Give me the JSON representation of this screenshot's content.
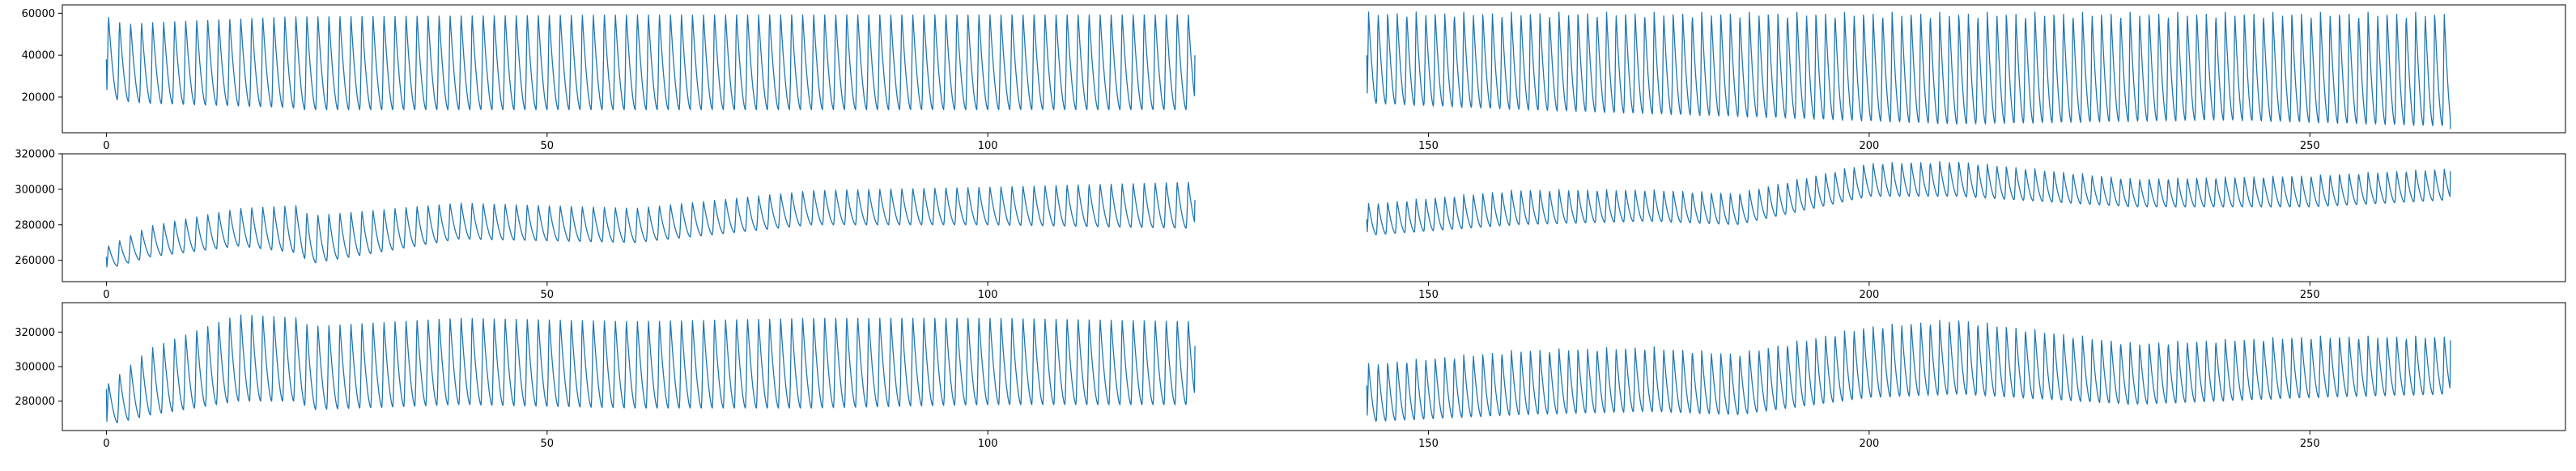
{
  "figure": {
    "background": "#ffffff",
    "line_color": "#1f77b4"
  },
  "chart_data": [
    {
      "type": "line",
      "title": "",
      "xlabel": "",
      "ylabel": "",
      "xlim": [
        -5,
        279
      ],
      "ylim": [
        3000,
        64000
      ],
      "xticks": [
        0,
        50,
        100,
        150,
        200,
        250
      ],
      "xtick_labels": [
        "0",
        "50",
        "100",
        "150",
        "200",
        "250"
      ],
      "yticks": [
        20000,
        40000,
        60000
      ],
      "ytick_labels": [
        "20000",
        "40000",
        "60000"
      ],
      "grid": false,
      "segments": [
        {
          "x_start": 0,
          "x_end": 123.5,
          "start_value": 38000,
          "end_value": 40000,
          "period": 1.25,
          "envelope": [
            [
              0,
              20000,
              60000
            ],
            [
              2,
              18000,
              56000
            ],
            [
              5,
              17000,
              57000
            ],
            [
              21,
              15000,
              60000
            ],
            [
              22,
              14000,
              60000
            ],
            [
              60,
              14000,
              61000
            ],
            [
              123,
              14000,
              61000
            ]
          ]
        },
        {
          "x_start": 143,
          "x_end": 266,
          "start_value": 40000,
          "end_value": 5000,
          "period": 1.08,
          "envelope": [
            [
              143,
              17000,
              61000
            ],
            [
              160,
              14000,
              61000
            ],
            [
              190,
              10000,
              61000
            ],
            [
              210,
              7000,
              61000
            ],
            [
              240,
              9000,
              61000
            ],
            [
              266,
              6000,
              61000
            ]
          ]
        }
      ]
    },
    {
      "type": "line",
      "title": "",
      "xlabel": "",
      "ylabel": "",
      "xlim": [
        -5,
        279
      ],
      "ylim": [
        248000,
        320000
      ],
      "xticks": [
        0,
        50,
        100,
        150,
        200,
        250
      ],
      "xtick_labels": [
        "0",
        "50",
        "100",
        "150",
        "200",
        "250"
      ],
      "yticks": [
        260000,
        280000,
        300000,
        320000
      ],
      "ytick_labels": [
        "260000",
        "280000",
        "300000",
        "320000"
      ],
      "grid": false,
      "segments": [
        {
          "x_start": 0,
          "x_end": 123.5,
          "start_value": 262000,
          "end_value": 294000,
          "period": 1.25,
          "envelope": [
            [
              0,
              255000,
              268000
            ],
            [
              5,
              262000,
              280000
            ],
            [
              15,
              268000,
              290000
            ],
            [
              22,
              264000,
              292000
            ],
            [
              23,
              258000,
              286000
            ],
            [
              40,
              272000,
              293000
            ],
            [
              60,
              270000,
              290000
            ],
            [
              80,
              280000,
              300000
            ],
            [
              100,
              280000,
              302000
            ],
            [
              123,
              278000,
              305000
            ]
          ]
        },
        {
          "x_start": 143,
          "x_end": 266,
          "start_value": 283000,
          "end_value": 310000,
          "period": 1.08,
          "envelope": [
            [
              143,
              274000,
              292000
            ],
            [
              160,
              280000,
              300000
            ],
            [
              175,
              282000,
              300000
            ],
            [
              185,
              280000,
              298000
            ],
            [
              200,
              296000,
              315000
            ],
            [
              210,
              296000,
              316000
            ],
            [
              230,
              290000,
              306000
            ],
            [
              250,
              290000,
              308000
            ],
            [
              266,
              294000,
              312000
            ]
          ]
        }
      ]
    },
    {
      "type": "line",
      "title": "",
      "xlabel": "",
      "ylabel": "",
      "xlim": [
        -5,
        279
      ],
      "ylim": [
        263000,
        337000
      ],
      "xticks": [
        0,
        50,
        100,
        150,
        200,
        250
      ],
      "xtick_labels": [
        "0",
        "50",
        "100",
        "150",
        "200",
        "250"
      ],
      "yticks": [
        280000,
        300000,
        320000
      ],
      "ytick_labels": [
        "280000",
        "300000",
        "320000"
      ],
      "grid": false,
      "segments": [
        {
          "x_start": 0,
          "x_end": 123.5,
          "start_value": 287000,
          "end_value": 312000,
          "period": 1.25,
          "envelope": [
            [
              0,
              266000,
              290000
            ],
            [
              5,
              272000,
              312000
            ],
            [
              15,
              280000,
              332000
            ],
            [
              22,
              280000,
              330000
            ],
            [
              23,
              275000,
              325000
            ],
            [
              40,
              278000,
              330000
            ],
            [
              60,
              276000,
              328000
            ],
            [
              80,
              276000,
              330000
            ],
            [
              100,
              278000,
              330000
            ],
            [
              123,
              278000,
              328000
            ]
          ]
        },
        {
          "x_start": 143,
          "x_end": 266,
          "start_value": 289000,
          "end_value": 315000,
          "period": 1.08,
          "envelope": [
            [
              143,
              268000,
              302000
            ],
            [
              160,
              272000,
              310000
            ],
            [
              175,
              274000,
              312000
            ],
            [
              185,
              272000,
              308000
            ],
            [
              200,
              282000,
              324000
            ],
            [
              210,
              284000,
              328000
            ],
            [
              230,
              278000,
              314000
            ],
            [
              250,
              282000,
              318000
            ],
            [
              266,
              284000,
              318000
            ]
          ]
        }
      ]
    }
  ]
}
